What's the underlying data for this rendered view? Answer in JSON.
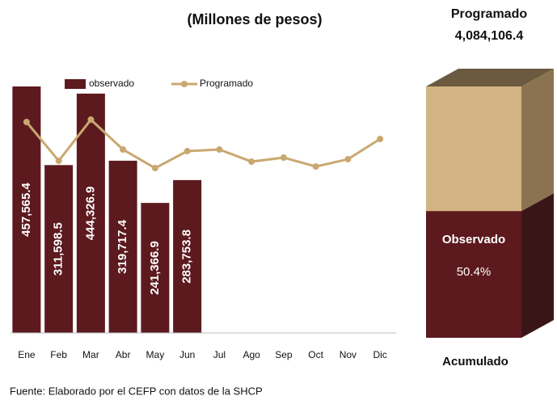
{
  "chart_data": [
    {
      "type": "bar",
      "title": "(Millones de pesos)",
      "categories": [
        "Ene",
        "Feb",
        "Mar",
        "Abr",
        "May",
        "Jun",
        "Jul",
        "Ago",
        "Sep",
        "Oct",
        "Nov",
        "Dic"
      ],
      "series": [
        {
          "name": "observado",
          "type": "bar",
          "color": "#5c1a1e",
          "values": [
            457565.4,
            311598.5,
            444326.9,
            319717.4,
            241366.9,
            283753.8,
            null,
            null,
            null,
            null,
            null,
            null
          ],
          "value_labels": [
            "457,565.4",
            "311,598.5",
            "444,326.9",
            "319,717.4",
            "241,366.9",
            "283,753.8",
            null,
            null,
            null,
            null,
            null,
            null
          ]
        },
        {
          "name": "Programado",
          "type": "line",
          "color": "#c9a870",
          "values": [
            391500,
            319500,
            396000,
            340500,
            306000,
            337500,
            340500,
            318000,
            325500,
            309000,
            322500,
            360000
          ]
        }
      ]
    },
    {
      "type": "cube",
      "title": "Acumulado",
      "total_name": "Programado",
      "total": 4084106.4,
      "total_label": "4,084,106.4",
      "total_color": "#d2b482",
      "share_name": "Observado",
      "share": 50.4,
      "share_label": "50.4%",
      "share_color": "#5c1a1e"
    }
  ],
  "source": "Fuente: Elaborado por el CEFP con datos de la SHCP"
}
